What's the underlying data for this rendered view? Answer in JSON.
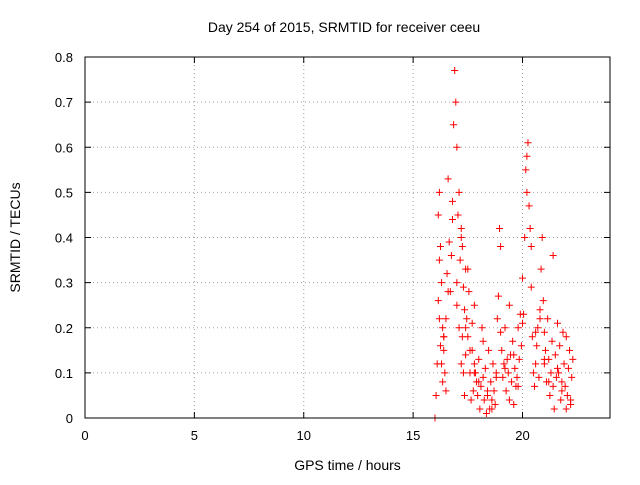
{
  "chart_data": {
    "type": "scatter",
    "title": "Day 254 of 2015, SRMTID for receiver ceeu",
    "xlabel": "GPS time / hours",
    "ylabel": "SRMTID / TECUs",
    "xlim": [
      0,
      24
    ],
    "ylim": [
      0,
      0.8
    ],
    "xticks": [
      0,
      5,
      10,
      15,
      20
    ],
    "yticks": [
      0,
      0.1,
      0.2,
      0.3,
      0.4,
      0.5,
      0.6,
      0.7,
      0.8
    ],
    "xtick_labels": [
      "0",
      "5",
      "10",
      "15",
      "20"
    ],
    "ytick_labels": [
      "0",
      "0.1",
      "0.2",
      "0.3",
      "0.4",
      "0.5",
      "0.6",
      "0.7",
      "0.8"
    ],
    "grid": true,
    "marker": "+",
    "marker_color": "#ff0000",
    "series": [
      {
        "x": [
          16.0,
          16.0,
          16.05,
          16.1,
          16.15,
          16.15,
          16.2,
          16.2,
          16.25,
          16.25,
          16.3,
          16.3,
          16.35,
          16.35,
          16.4,
          16.4,
          16.45,
          16.5,
          16.5,
          16.55,
          16.6,
          16.65,
          16.7,
          16.75,
          16.8,
          16.85,
          16.9,
          16.95,
          17.0,
          17.0,
          17.05,
          17.1,
          17.1,
          17.15,
          17.2,
          17.2,
          17.25,
          17.25,
          17.3,
          17.3,
          17.35,
          17.35,
          17.4,
          17.4,
          17.45,
          17.5,
          17.5,
          17.55,
          17.6,
          17.65,
          17.7,
          17.7,
          17.75,
          17.8,
          17.8,
          17.85,
          17.9,
          17.95,
          18.0,
          18.05,
          18.1,
          18.15,
          18.2,
          18.25,
          18.3,
          18.35,
          18.4,
          18.45,
          18.5,
          18.55,
          18.6,
          18.65,
          18.7,
          18.75,
          18.8,
          18.85,
          18.9,
          18.95,
          19.0,
          19.05,
          19.1,
          19.15,
          19.2,
          19.25,
          19.3,
          19.35,
          19.4,
          19.45,
          19.5,
          19.55,
          19.6,
          19.65,
          19.7,
          19.75,
          19.8,
          19.85,
          19.9,
          19.95,
          20.0,
          20.05,
          20.1,
          20.15,
          20.2,
          20.25,
          20.3,
          20.35,
          20.4,
          20.45,
          20.5,
          20.55,
          20.6,
          20.65,
          20.7,
          20.75,
          20.8,
          20.85,
          20.9,
          20.95,
          21.0,
          21.0,
          21.05,
          21.1,
          21.15,
          21.2,
          21.25,
          21.3,
          21.35,
          21.4,
          21.45,
          21.5,
          21.55,
          21.6,
          21.65,
          21.7,
          21.75,
          21.8,
          21.85,
          21.9,
          21.95,
          22.0,
          22.05,
          22.1,
          22.15,
          22.2,
          22.25,
          22.3,
          16.2,
          16.4,
          16.6,
          16.8,
          17.0,
          17.2,
          17.4,
          17.6,
          17.8,
          18.0,
          18.2,
          18.4,
          18.6,
          18.8,
          19.0,
          19.2,
          19.4,
          19.6,
          19.8,
          20.0,
          20.2,
          20.4,
          20.6,
          20.8,
          21.0,
          21.2,
          21.4,
          21.6,
          21.8,
          22.0,
          22.2
        ],
        "y": [
          0.0,
          0.0,
          0.05,
          0.12,
          0.26,
          0.45,
          0.5,
          0.22,
          0.38,
          0.16,
          0.3,
          0.12,
          0.2,
          0.08,
          0.15,
          0.18,
          0.1,
          0.22,
          0.06,
          0.32,
          0.53,
          0.39,
          0.28,
          0.36,
          0.48,
          0.65,
          0.77,
          0.7,
          0.6,
          0.3,
          0.45,
          0.5,
          0.2,
          0.35,
          0.42,
          0.12,
          0.38,
          0.18,
          0.29,
          0.1,
          0.24,
          0.05,
          0.2,
          0.14,
          0.22,
          0.33,
          0.18,
          0.28,
          0.1,
          0.04,
          0.15,
          0.21,
          0.06,
          0.12,
          0.25,
          0.1,
          0.08,
          0.05,
          0.13,
          0.02,
          0.07,
          0.2,
          0.09,
          0.04,
          0.11,
          0.01,
          0.06,
          0.15,
          0.02,
          0.08,
          0.04,
          0.12,
          0.06,
          0.03,
          0.1,
          0.22,
          0.27,
          0.42,
          0.38,
          0.15,
          0.09,
          0.12,
          0.2,
          0.06,
          0.13,
          0.1,
          0.04,
          0.14,
          0.08,
          0.17,
          0.03,
          0.11,
          0.07,
          0.09,
          0.2,
          0.13,
          0.23,
          0.16,
          0.31,
          0.23,
          0.4,
          0.55,
          0.58,
          0.61,
          0.47,
          0.42,
          0.29,
          0.18,
          0.1,
          0.07,
          0.12,
          0.16,
          0.2,
          0.09,
          0.22,
          0.33,
          0.4,
          0.26,
          0.19,
          0.12,
          0.15,
          0.08,
          0.22,
          0.13,
          0.05,
          0.1,
          0.17,
          0.07,
          0.02,
          0.14,
          0.09,
          0.21,
          0.1,
          0.16,
          0.04,
          0.08,
          0.19,
          0.12,
          0.07,
          0.02,
          0.05,
          0.11,
          0.15,
          0.04,
          0.09,
          0.13,
          0.35,
          0.18,
          0.28,
          0.44,
          0.25,
          0.4,
          0.33,
          0.15,
          0.1,
          0.08,
          0.17,
          0.05,
          0.02,
          0.09,
          0.19,
          0.11,
          0.25,
          0.14,
          0.07,
          0.21,
          0.5,
          0.38,
          0.19,
          0.24,
          0.13,
          0.08,
          0.36,
          0.11,
          0.06,
          0.18,
          0.03
        ]
      }
    ]
  }
}
